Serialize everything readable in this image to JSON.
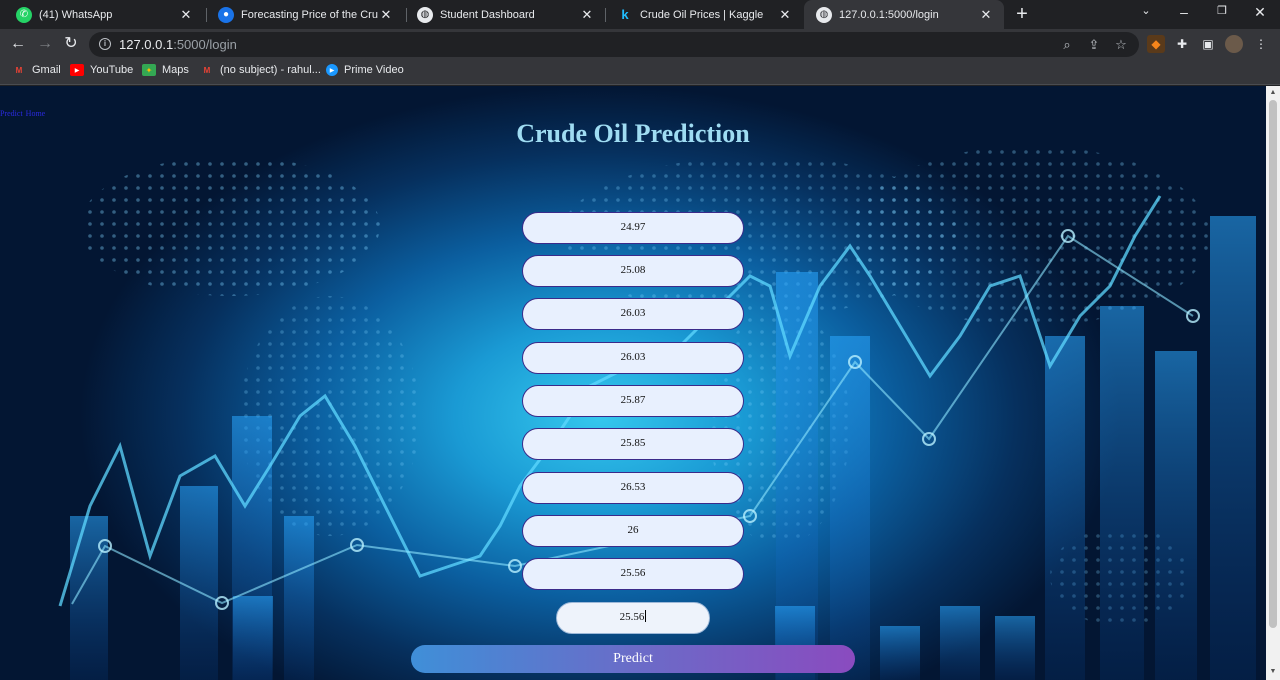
{
  "browser": {
    "tabs": [
      {
        "title": "(41) WhatsApp",
        "icon": "whatsapp-icon",
        "color": "#25d366"
      },
      {
        "title": "Forecasting Price of the Crude oil",
        "icon": "globe-icon",
        "color": "#1a73e8"
      },
      {
        "title": "Student Dashboard",
        "icon": "globe-icon",
        "color": "#e8eaed"
      },
      {
        "title": "Crude Oil Prices | Kaggle",
        "icon": "kaggle-icon",
        "color": "#20beff"
      },
      {
        "title": "127.0.0.1:5000/login",
        "icon": "globe-icon",
        "color": "#e8eaed",
        "active": true
      }
    ],
    "url_host": "127.0.0.1",
    "url_path": ":5000/login",
    "bookmarks": [
      {
        "label": "Gmail",
        "icon": "gmail-icon"
      },
      {
        "label": "YouTube",
        "icon": "youtube-icon"
      },
      {
        "label": "Maps",
        "icon": "maps-icon"
      },
      {
        "label": "(no subject) - rahul...",
        "icon": "gmail-icon"
      },
      {
        "label": "Prime Video",
        "icon": "prime-video-icon"
      }
    ]
  },
  "page": {
    "nav_links": [
      "Predict",
      "Home"
    ],
    "title": "Crude Oil Prediction",
    "fields": [
      "24.97",
      "25.08",
      "26.03",
      "26.03",
      "25.87",
      "25.85",
      "26.53",
      "26",
      "25.56",
      "25.56"
    ],
    "predict_label": "Predict"
  }
}
